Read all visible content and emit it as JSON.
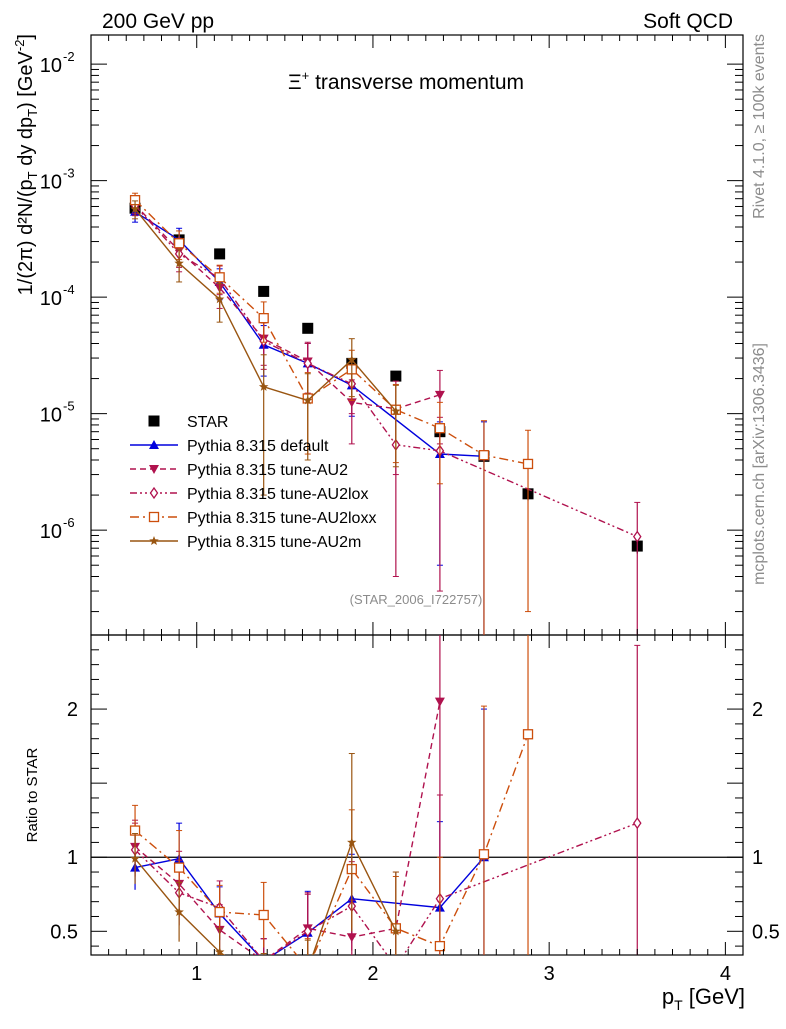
{
  "header": {
    "left": "200 GeV pp",
    "right": "Soft QCD"
  },
  "side_labels": {
    "top": "Rivet 4.1.0, ≥ 100k events",
    "bottom": "mcplots.cern.ch [arXiv:1306.3436]"
  },
  "reference_label": "(STAR_2006_I722757)",
  "chart_data": {
    "type": "scatter",
    "title_prefix": "Ξ",
    "title_sup": "+",
    "title_suffix": " transverse momentum",
    "xlabel_main": "p",
    "xlabel_sub": "T",
    "xlabel_unit": " [GeV]",
    "ylabel_main": "1/(2π)  d²N/(p",
    "ylabel_sub1": "T",
    "ylabel_mid": " dy dp",
    "ylabel_sub2": "T",
    "ylabel_end": ") [GeV",
    "ylabel_sup": "-2",
    "ylabel_close": "]",
    "ratio_ylabel": "Ratio to STAR",
    "xlim": [
      0.4,
      4.1
    ],
    "ylim_log": [
      -6.9,
      -1.75
    ],
    "ratio_ylim": [
      0.34,
      2.5
    ],
    "x_ticks": [
      1,
      2,
      3,
      4
    ],
    "x_tick_labels": [
      "1",
      "2",
      "3",
      "4"
    ],
    "y_ticks": [
      -6,
      -5,
      -4,
      -3,
      -2
    ],
    "y_tick_labels": [
      "10",
      "10",
      "10",
      "10",
      "10"
    ],
    "y_tick_sups": [
      "-6",
      "-5",
      "-4",
      "-3",
      "-2"
    ],
    "ratio_ticks": [
      0.5,
      1,
      2
    ],
    "ratio_tick_labels": [
      "0.5",
      "1",
      "2"
    ],
    "series": [
      {
        "name": "STAR",
        "color": "#000000",
        "marker": "filled-square",
        "line": "none",
        "x": [
          0.65,
          0.9,
          1.13,
          1.38,
          1.63,
          1.88,
          2.13,
          2.38,
          2.63,
          2.88,
          3.5
        ],
        "y": [
          0.00058,
          0.00031,
          0.000235,
          0.000112,
          5.4e-05,
          2.7e-05,
          2.1e-05,
          7e-06,
          4.3e-06,
          2.05e-06,
          7.3e-07
        ],
        "err": [
          3e-05,
          2e-05,
          1e-05,
          6e-06,
          3e-06,
          2e-06,
          1.5e-06,
          7e-07,
          5e-07,
          2.5e-07,
          1e-07
        ],
        "ratio": [
          1,
          1,
          1,
          1,
          1,
          1,
          1,
          1,
          1,
          1,
          1
        ]
      },
      {
        "name": "Pythia 8.315 default",
        "color": "#0000dd",
        "marker": "triangle-up",
        "line": "solid",
        "x": [
          0.65,
          0.9,
          1.13,
          1.38,
          1.63,
          1.88,
          2.38,
          2.63
        ],
        "y": [
          0.00054,
          0.00031,
          0.000135,
          3.9e-05,
          2.7e-05,
          1.75e-05,
          4.5e-06,
          4.3e-06
        ],
        "err": [
          0.0001,
          8e-05,
          4e-05,
          1.8e-05,
          1.3e-05,
          8e-06,
          4e-06,
          4.2e-06
        ],
        "ratio": [
          0.93,
          0.99,
          0.62,
          0.3,
          0.49,
          0.72,
          0.66,
          1.0
        ],
        "ratio_err": [
          0.15,
          0.24,
          0.18,
          0.15,
          0.28,
          0.3,
          0.58,
          1.0
        ]
      },
      {
        "name": "Pythia 8.315 tune-AU2",
        "color": "#b0124e",
        "marker": "triangle-down",
        "line": "dashed",
        "x": [
          0.65,
          0.9,
          1.13,
          1.38,
          1.63,
          1.88,
          2.13,
          2.38
        ],
        "y": [
          0.00062,
          0.00025,
          0.00012,
          4.4e-05,
          2.8e-05,
          1.25e-05,
          1.1e-05,
          1.45e-05
        ],
        "err": [
          0.0001,
          7e-05,
          4e-05,
          1.8e-05,
          1.3e-05,
          7e-06,
          8e-06,
          9e-06
        ],
        "ratio": [
          1.07,
          0.82,
          0.51,
          0.3,
          0.52,
          0.46,
          0.52,
          2.05
        ],
        "ratio_err": [
          0.18,
          0.22,
          0.17,
          0.15,
          0.24,
          0.25,
          0.38,
          1.3
        ]
      },
      {
        "name": "Pythia 8.315 tune-AU2lox",
        "color": "#b0124e",
        "marker": "open-diamond",
        "line": "dashdotdot",
        "x": [
          0.65,
          0.9,
          1.13,
          1.38,
          1.63,
          1.88,
          2.13,
          2.38,
          3.5
        ],
        "y": [
          0.00061,
          0.000235,
          0.000145,
          4.2e-05,
          2.7e-05,
          1.8e-05,
          5.4e-06,
          4.8e-06,
          8.8e-07
        ],
        "err": [
          0.00011,
          7e-05,
          4e-05,
          1.8e-05,
          1.3e-05,
          8e-06,
          5e-06,
          4.5e-06,
          8.5e-07
        ],
        "ratio": [
          1.05,
          0.76,
          0.66,
          0.3,
          0.5,
          0.67,
          0.26,
          0.72,
          1.23
        ],
        "ratio_err": [
          0.18,
          0.22,
          0.18,
          0.15,
          0.25,
          0.3,
          0.25,
          0.7,
          1.2
        ]
      },
      {
        "name": "Pythia 8.315 tune-AU2loxx",
        "color": "#cc4e0c",
        "marker": "open-square",
        "line": "dashdot",
        "x": [
          0.65,
          0.9,
          1.13,
          1.38,
          1.63,
          1.88,
          2.13,
          2.38,
          2.63,
          2.88
        ],
        "y": [
          0.00068,
          0.00029,
          0.000148,
          6.6e-05,
          1.35e-05,
          2.4e-05,
          1.08e-05,
          7.5e-06,
          4.4e-06,
          3.7e-06
        ],
        "err": [
          0.0001,
          8e-05,
          4e-05,
          2.5e-05,
          9e-06,
          1.1e-05,
          7e-06,
          5e-06,
          4.3e-06,
          3.5e-06
        ],
        "ratio": [
          1.18,
          0.93,
          0.63,
          0.61,
          0.25,
          0.92,
          0.52,
          0.4,
          1.02,
          1.83
        ],
        "ratio_err": [
          0.17,
          0.25,
          0.18,
          0.22,
          0.2,
          0.4,
          0.35,
          0.6,
          1.0,
          1.7
        ]
      },
      {
        "name": "Pythia 8.315 tune-AU2m",
        "color": "#995511",
        "marker": "star",
        "line": "solid",
        "x": [
          0.65,
          0.9,
          1.13,
          1.38,
          1.63,
          1.88,
          2.13
        ],
        "y": [
          0.00057,
          0.000195,
          9.6e-05,
          1.7e-05,
          1.3e-05,
          2.9e-05,
          1.05e-05
        ],
        "err": [
          0.0001,
          6e-05,
          3.5e-05,
          1.5e-05,
          9e-06,
          1.5e-05,
          7e-06
        ],
        "ratio": [
          0.99,
          0.63,
          0.36,
          0.15,
          0.24,
          1.1,
          0.5
        ],
        "ratio_err": [
          0.17,
          0.2,
          0.16,
          0.2,
          0.2,
          0.6,
          0.4
        ]
      }
    ]
  }
}
